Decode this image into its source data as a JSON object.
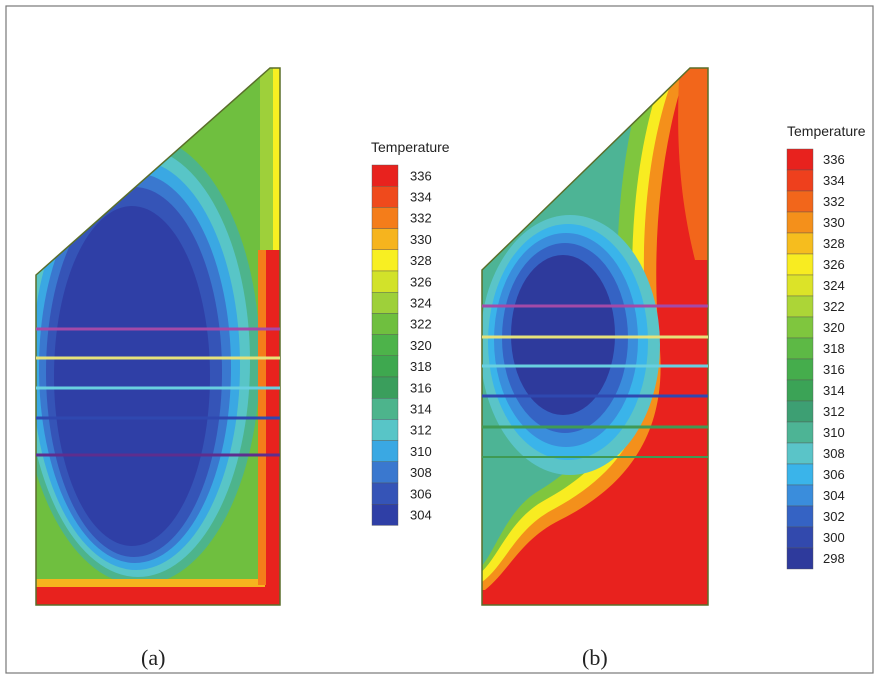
{
  "panels": [
    {
      "id": "a",
      "caption": "(a)",
      "legend": {
        "title": "Temperature",
        "levels": [
          336,
          334,
          332,
          330,
          328,
          326,
          324,
          322,
          320,
          318,
          316,
          314,
          312,
          310,
          308,
          306,
          304
        ],
        "colors": [
          "#e8221e",
          "#ef4a1c",
          "#f47d1a",
          "#f6b41e",
          "#f8ef22",
          "#d2e22a",
          "#9ed03a",
          "#6fbf3f",
          "#4db34a",
          "#3ea84f",
          "#3a9e5c",
          "#4db48c",
          "#58c5c7",
          "#3aa8e3",
          "#3a78cf",
          "#3554b7",
          "#2f3fa6"
        ]
      }
    },
    {
      "id": "b",
      "caption": "(b)",
      "legend": {
        "title": "Temperature",
        "levels": [
          336,
          334,
          332,
          330,
          328,
          326,
          324,
          322,
          320,
          318,
          316,
          314,
          312,
          310,
          308,
          306,
          304,
          302,
          300,
          298
        ],
        "colors": [
          "#e8221e",
          "#ee401d",
          "#f2661b",
          "#f4901b",
          "#f6bd1e",
          "#f8ec21",
          "#dce328",
          "#acd537",
          "#7fc63e",
          "#5db945",
          "#45ad4c",
          "#3ba356",
          "#3d9f73",
          "#4db495",
          "#5ac4c8",
          "#3ab4ea",
          "#3a8ddc",
          "#3563c4",
          "#3249ad",
          "#2e3a9c"
        ]
      }
    }
  ]
}
